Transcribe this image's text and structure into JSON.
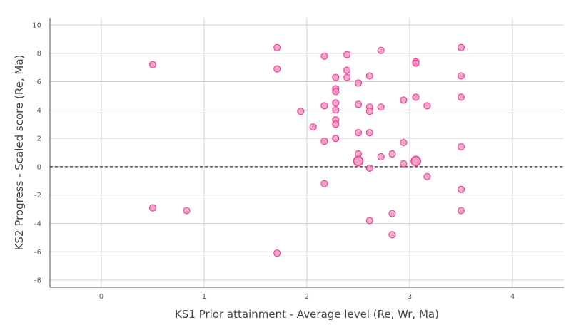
{
  "chart_data": {
    "type": "scatter",
    "xlabel": "KS1 Prior attainment - Average level (Re, Wr, Ma)",
    "ylabel": "KS2 Progress - Scaled score (Re, Ma)",
    "xlim": [
      -0.5,
      4.5
    ],
    "ylim": [
      -8.5,
      10.5
    ],
    "x_ticks": [
      0,
      1,
      2,
      3,
      4
    ],
    "y_ticks": [
      -8,
      -6,
      -4,
      -2,
      0,
      2,
      4,
      6,
      8,
      10
    ],
    "x_tick_labels": [
      "0",
      "1",
      "2",
      "3",
      "4"
    ],
    "y_tick_labels": [
      "-8",
      "-6",
      "-4",
      "-2",
      "0",
      "2",
      "4",
      "6",
      "8",
      "10"
    ],
    "grid": true,
    "reference_line": {
      "y": 0,
      "style": "dashed"
    },
    "marker_color": "#e8488f",
    "marker_fill": "#f190c0",
    "points": [
      {
        "x": 0.5,
        "y": 7.2
      },
      {
        "x": 0.5,
        "y": -2.9
      },
      {
        "x": 0.83,
        "y": -3.1
      },
      {
        "x": 1.71,
        "y": 8.4
      },
      {
        "x": 1.71,
        "y": 6.9
      },
      {
        "x": 1.71,
        "y": -6.1
      },
      {
        "x": 1.94,
        "y": 3.9
      },
      {
        "x": 2.06,
        "y": 2.8
      },
      {
        "x": 2.17,
        "y": 7.8
      },
      {
        "x": 2.17,
        "y": 4.3
      },
      {
        "x": 2.17,
        "y": 1.8
      },
      {
        "x": 2.17,
        "y": -1.2
      },
      {
        "x": 2.28,
        "y": 6.3
      },
      {
        "x": 2.28,
        "y": 5.5
      },
      {
        "x": 2.28,
        "y": 5.3
      },
      {
        "x": 2.28,
        "y": 4.5
      },
      {
        "x": 2.28,
        "y": 4.0
      },
      {
        "x": 2.28,
        "y": 3.3
      },
      {
        "x": 2.28,
        "y": 3.0
      },
      {
        "x": 2.28,
        "y": 2.0
      },
      {
        "x": 2.39,
        "y": 7.9
      },
      {
        "x": 2.39,
        "y": 6.8
      },
      {
        "x": 2.39,
        "y": 6.3
      },
      {
        "x": 2.5,
        "y": 5.9
      },
      {
        "x": 2.5,
        "y": 4.4
      },
      {
        "x": 2.5,
        "y": 2.4
      },
      {
        "x": 2.5,
        "y": 0.9
      },
      {
        "x": 2.5,
        "y": 0.4,
        "size": "large"
      },
      {
        "x": 2.61,
        "y": 6.4
      },
      {
        "x": 2.61,
        "y": 4.2
      },
      {
        "x": 2.61,
        "y": 3.9
      },
      {
        "x": 2.61,
        "y": 2.4
      },
      {
        "x": 2.61,
        "y": -0.1
      },
      {
        "x": 2.61,
        "y": -3.8
      },
      {
        "x": 2.72,
        "y": 8.2
      },
      {
        "x": 2.72,
        "y": 4.2
      },
      {
        "x": 2.72,
        "y": 0.7
      },
      {
        "x": 2.83,
        "y": 0.9
      },
      {
        "x": 2.83,
        "y": -3.3
      },
      {
        "x": 2.83,
        "y": -4.8
      },
      {
        "x": 2.94,
        "y": 4.7
      },
      {
        "x": 2.94,
        "y": 1.7
      },
      {
        "x": 2.94,
        "y": 0.2
      },
      {
        "x": 3.06,
        "y": 7.4
      },
      {
        "x": 3.06,
        "y": 7.3
      },
      {
        "x": 3.06,
        "y": 4.9
      },
      {
        "x": 3.06,
        "y": 0.4,
        "size": "large"
      },
      {
        "x": 3.17,
        "y": 4.3
      },
      {
        "x": 3.17,
        "y": -0.7
      },
      {
        "x": 3.5,
        "y": 8.4
      },
      {
        "x": 3.5,
        "y": 6.4
      },
      {
        "x": 3.5,
        "y": 4.9
      },
      {
        "x": 3.5,
        "y": 1.4
      },
      {
        "x": 3.5,
        "y": -1.6
      },
      {
        "x": 3.5,
        "y": -3.1
      }
    ]
  }
}
